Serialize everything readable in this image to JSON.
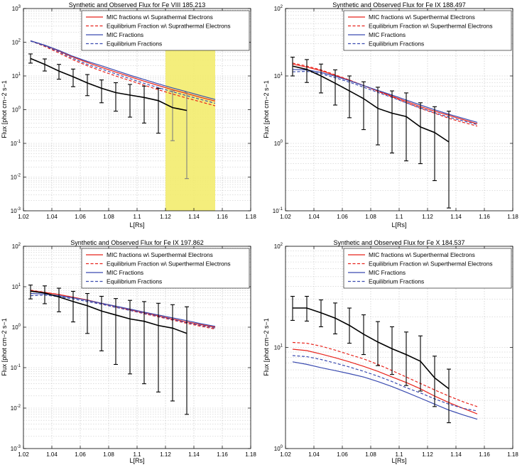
{
  "figure": {
    "colors": {
      "mic_sup": "#e8231b",
      "eq_sup": "#e8231b",
      "mic": "#3a4bb0",
      "eq": "#3a4bb0",
      "observed": "#000000",
      "highlight": "#f3ec6e",
      "grid": "#bfbfbf"
    }
  },
  "chart_data": [
    {
      "type": "line",
      "title": "Synthetic and Observed Flux for Fe VIII 185.213",
      "xlabel": "L[Rs]",
      "ylabel": "Flux [phot cm−2 s−1",
      "xlim": [
        1.02,
        1.18
      ],
      "ylim_exp": [
        -3,
        3
      ],
      "xticks": [
        "1.02",
        "1.04",
        "1.06",
        "1.08",
        "1.1",
        "1.12",
        "1.14",
        "1.16",
        "1.18"
      ],
      "highlight_x": [
        1.12,
        1.155
      ],
      "legend": [
        "MIC fractions w\\ Suprathermal Electrons",
        "Equilibrium Fraction w\\ Suprathermal Electrons",
        "MIC Fractions",
        "Equilibrium Fractions"
      ],
      "series": [
        {
          "name": "MIC fractions w\\ Suprathermal Electrons",
          "style": "solid",
          "color": "#e8231b",
          "x": [
            1.025,
            1.035,
            1.045,
            1.055,
            1.065,
            1.075,
            1.085,
            1.095,
            1.105,
            1.115,
            1.125,
            1.135,
            1.145,
            1.155
          ],
          "y": [
            110,
            80,
            55,
            36,
            25,
            18,
            13,
            9.5,
            7.0,
            5.2,
            3.9,
            3.0,
            2.3,
            1.8
          ]
        },
        {
          "name": "Equilibrium Fraction w\\ Suprathermal Electrons",
          "style": "dashed",
          "color": "#e8231b",
          "x": [
            1.025,
            1.035,
            1.045,
            1.055,
            1.065,
            1.075,
            1.085,
            1.095,
            1.105,
            1.115,
            1.125,
            1.135,
            1.145,
            1.155
          ],
          "y": [
            110,
            75,
            48,
            30,
            20,
            14,
            10,
            7.3,
            5.3,
            3.9,
            2.9,
            2.2,
            1.7,
            1.3
          ]
        },
        {
          "name": "MIC Fractions",
          "style": "solid",
          "color": "#3a4bb0",
          "x": [
            1.025,
            1.035,
            1.045,
            1.055,
            1.065,
            1.075,
            1.085,
            1.095,
            1.105,
            1.115,
            1.125,
            1.135,
            1.145,
            1.155
          ],
          "y": [
            110,
            82,
            57,
            38,
            27,
            20,
            14.5,
            10.5,
            7.8,
            5.8,
            4.4,
            3.4,
            2.6,
            2.0
          ]
        },
        {
          "name": "Equilibrium Fractions",
          "style": "dashed",
          "color": "#3a4bb0",
          "x": [
            1.025,
            1.035,
            1.045,
            1.055,
            1.065,
            1.075,
            1.085,
            1.095,
            1.105,
            1.115,
            1.125,
            1.135,
            1.145,
            1.155
          ],
          "y": [
            108,
            78,
            52,
            33,
            22,
            16,
            11.5,
            8.3,
            6.0,
            4.5,
            3.4,
            2.6,
            2.0,
            1.55
          ]
        }
      ],
      "observed": {
        "x": [
          1.025,
          1.035,
          1.045,
          1.055,
          1.065,
          1.075,
          1.085,
          1.095,
          1.105,
          1.115,
          1.125,
          1.135
        ],
        "y": [
          33,
          22,
          14,
          9.5,
          6.2,
          4.3,
          3.2,
          2.7,
          2.3,
          1.85,
          1.15,
          0.95
        ],
        "lo": [
          24,
          14,
          8,
          4.8,
          2.6,
          1.6,
          0.9,
          0.6,
          0.4,
          0.2,
          0.12,
          0.009
        ],
        "hi": [
          45,
          32,
          22,
          16,
          11,
          7.6,
          6.3,
          5.6,
          5.0,
          4.3,
          3.6,
          3.3
        ]
      }
    },
    {
      "type": "line",
      "title": "Synthetic and Observed Flux for Fe IX 188.497",
      "xlabel": "L[Rs]",
      "ylabel": "Flux [phot cm−2 s−1",
      "xlim": [
        1.02,
        1.18
      ],
      "ylim_exp": [
        -1,
        2
      ],
      "xticks": [
        "1.02",
        "1.04",
        "1.06",
        "1.08",
        "1.1",
        "1.12",
        "1.14",
        "1.16",
        "1.18"
      ],
      "legend": [
        "MIC fractions w\\ Superthermal Electrons",
        "Equilibrium Fraction w\\ Superthermal Electrons",
        "MIC Fractions",
        "Equilibrium Fractions"
      ],
      "series": [
        {
          "name": "MIC fractions w\\ Superthermal Electrons",
          "style": "solid",
          "color": "#e8231b",
          "x": [
            1.025,
            1.035,
            1.045,
            1.055,
            1.065,
            1.075,
            1.085,
            1.095,
            1.105,
            1.115,
            1.125,
            1.135,
            1.145,
            1.155
          ],
          "y": [
            15,
            13.5,
            12,
            10.2,
            8.6,
            7.2,
            6.0,
            5.0,
            4.2,
            3.5,
            3.0,
            2.6,
            2.25,
            1.95
          ]
        },
        {
          "name": "Equilibrium Fraction w\\ Superthermal Electrons",
          "style": "dashed",
          "color": "#e8231b",
          "x": [
            1.025,
            1.035,
            1.045,
            1.055,
            1.065,
            1.075,
            1.085,
            1.095,
            1.105,
            1.115,
            1.125,
            1.135,
            1.145,
            1.155
          ],
          "y": [
            15.5,
            14,
            12.3,
            10.4,
            8.7,
            7.2,
            5.9,
            4.9,
            4.0,
            3.3,
            2.8,
            2.35,
            2.05,
            1.8
          ]
        },
        {
          "name": "MIC Fractions",
          "style": "solid",
          "color": "#3a4bb0",
          "x": [
            1.025,
            1.035,
            1.045,
            1.055,
            1.065,
            1.075,
            1.085,
            1.095,
            1.105,
            1.115,
            1.125,
            1.135,
            1.145,
            1.155
          ],
          "y": [
            12.5,
            12.3,
            11.3,
            9.9,
            8.5,
            7.2,
            6.1,
            5.2,
            4.4,
            3.7,
            3.15,
            2.7,
            2.35,
            2.05
          ]
        },
        {
          "name": "Equilibrium Fractions",
          "style": "dashed",
          "color": "#3a4bb0",
          "x": [
            1.025,
            1.035,
            1.045,
            1.055,
            1.065,
            1.075,
            1.085,
            1.095,
            1.105,
            1.115,
            1.125,
            1.135,
            1.145,
            1.155
          ],
          "y": [
            11.5,
            11.7,
            10.8,
            9.4,
            8.1,
            6.8,
            5.7,
            4.8,
            4.0,
            3.35,
            2.85,
            2.45,
            2.15,
            1.9
          ]
        }
      ],
      "observed": {
        "x": [
          1.025,
          1.035,
          1.045,
          1.055,
          1.065,
          1.075,
          1.085,
          1.095,
          1.105,
          1.115,
          1.125,
          1.135
        ],
        "y": [
          14,
          12.5,
          10,
          7.8,
          6.0,
          4.6,
          3.3,
          2.8,
          2.5,
          1.75,
          1.45,
          1.05
        ],
        "lo": [
          10,
          8,
          5.6,
          3.7,
          2.4,
          1.6,
          0.95,
          0.72,
          0.55,
          0.5,
          0.28,
          0.11
        ],
        "hi": [
          19,
          17.5,
          15,
          12.3,
          10,
          8.2,
          6.8,
          6.0,
          5.6,
          4.0,
          3.5,
          3.0
        ]
      }
    },
    {
      "type": "line",
      "title": "Synthetic and Observed Flux for Fe IX 197.862",
      "xlabel": "L[Rs]",
      "ylabel": "Flux [phot cm−2 s−1",
      "xlim": [
        1.02,
        1.18
      ],
      "ylim_exp": [
        -3,
        2
      ],
      "xticks": [
        "1.02",
        "1.04",
        "1.06",
        "1.08",
        "1.1",
        "1.12",
        "1.14",
        "1.16",
        "1.18"
      ],
      "legend": [
        "MIC fractions w\\ Superthermal Electrons",
        "Equilibrium Fraction w\\ Superthermal Electrons",
        "MIC Fractions",
        "Equilibrium Fractions"
      ],
      "series": [
        {
          "name": "MIC fractions w\\ Superthermal Electrons",
          "style": "solid",
          "color": "#e8231b",
          "x": [
            1.025,
            1.035,
            1.045,
            1.055,
            1.065,
            1.075,
            1.085,
            1.095,
            1.105,
            1.115,
            1.125,
            1.135,
            1.145,
            1.155
          ],
          "y": [
            8.0,
            7.2,
            6.4,
            5.5,
            4.7,
            3.9,
            3.3,
            2.7,
            2.3,
            1.9,
            1.6,
            1.35,
            1.15,
            1.0
          ]
        },
        {
          "name": "Equilibrium Fraction w\\ Superthermal Electrons",
          "style": "dashed",
          "color": "#e8231b",
          "x": [
            1.025,
            1.035,
            1.045,
            1.055,
            1.065,
            1.075,
            1.085,
            1.095,
            1.105,
            1.115,
            1.125,
            1.135,
            1.145,
            1.155
          ],
          "y": [
            8.2,
            7.3,
            6.4,
            5.5,
            4.6,
            3.8,
            3.1,
            2.6,
            2.15,
            1.8,
            1.5,
            1.25,
            1.05,
            0.9
          ]
        },
        {
          "name": "MIC Fractions",
          "style": "solid",
          "color": "#3a4bb0",
          "x": [
            1.025,
            1.035,
            1.045,
            1.055,
            1.065,
            1.075,
            1.085,
            1.095,
            1.105,
            1.115,
            1.125,
            1.135,
            1.145,
            1.155
          ],
          "y": [
            6.8,
            6.6,
            6.0,
            5.3,
            4.6,
            3.9,
            3.3,
            2.8,
            2.35,
            2.0,
            1.7,
            1.45,
            1.22,
            1.05
          ]
        },
        {
          "name": "Equilibrium Fractions",
          "style": "dashed",
          "color": "#3a4bb0",
          "x": [
            1.025,
            1.035,
            1.045,
            1.055,
            1.065,
            1.075,
            1.085,
            1.095,
            1.105,
            1.115,
            1.125,
            1.135,
            1.145,
            1.155
          ],
          "y": [
            6.0,
            6.2,
            5.7,
            5.0,
            4.3,
            3.7,
            3.1,
            2.6,
            2.2,
            1.85,
            1.55,
            1.3,
            1.1,
            0.95
          ]
        }
      ],
      "observed": {
        "x": [
          1.025,
          1.035,
          1.045,
          1.055,
          1.065,
          1.075,
          1.085,
          1.095,
          1.105,
          1.115,
          1.125,
          1.135
        ],
        "y": [
          7.8,
          7.0,
          5.6,
          4.3,
          3.4,
          2.5,
          2.0,
          1.6,
          1.4,
          1.1,
          0.95,
          0.7
        ],
        "lo": [
          5.0,
          3.8,
          2.4,
          1.35,
          0.7,
          0.26,
          0.12,
          0.07,
          0.04,
          0.025,
          0.015,
          0.007
        ],
        "hi": [
          11,
          10.5,
          9.2,
          7.7,
          6.8,
          5.8,
          5.1,
          4.6,
          4.3,
          3.9,
          3.6,
          3.2
        ]
      }
    },
    {
      "type": "line",
      "title": "Synthetic and Observed Flux for Fe X 184.537",
      "xlabel": "L[Rs]",
      "ylabel": "Flux [phot cm−2 s−1",
      "xlim": [
        1.02,
        1.18
      ],
      "ylim_exp": [
        0,
        2
      ],
      "xticks": [
        "1.02",
        "1.04",
        "1.06",
        "1.08",
        "1.1",
        "1.12",
        "1.14",
        "1.16",
        "1.18"
      ],
      "legend": [
        "MIC fractions w\\ Superthermal Electrons",
        "Equilibrium Fraction w\\ Superthermal Electrons",
        "MIC Fractions",
        "Equilibrium Fractions"
      ],
      "series": [
        {
          "name": "MIC fractions w\\ Superthermal Electrons",
          "style": "solid",
          "color": "#e8231b",
          "x": [
            1.025,
            1.035,
            1.045,
            1.055,
            1.065,
            1.075,
            1.085,
            1.095,
            1.105,
            1.115,
            1.125,
            1.135,
            1.145,
            1.155
          ],
          "y": [
            9.6,
            9.3,
            8.6,
            7.9,
            7.2,
            6.5,
            5.8,
            5.1,
            4.5,
            3.9,
            3.3,
            2.85,
            2.5,
            2.2
          ]
        },
        {
          "name": "Equilibrium Fraction w\\ Superthermal Electrons",
          "style": "dashed",
          "color": "#e8231b",
          "x": [
            1.025,
            1.035,
            1.045,
            1.055,
            1.065,
            1.075,
            1.085,
            1.095,
            1.105,
            1.115,
            1.125,
            1.135,
            1.145,
            1.155
          ],
          "y": [
            11.2,
            11.0,
            10.3,
            9.4,
            8.5,
            7.7,
            6.8,
            5.9,
            5.1,
            4.4,
            3.8,
            3.3,
            2.9,
            2.6
          ]
        },
        {
          "name": "MIC Fractions",
          "style": "solid",
          "color": "#3a4bb0",
          "x": [
            1.025,
            1.035,
            1.045,
            1.055,
            1.065,
            1.075,
            1.085,
            1.095,
            1.105,
            1.115,
            1.125,
            1.135,
            1.145,
            1.155
          ],
          "y": [
            7.2,
            6.8,
            6.3,
            5.9,
            5.5,
            5.1,
            4.6,
            4.1,
            3.6,
            3.15,
            2.75,
            2.4,
            2.15,
            1.95
          ]
        },
        {
          "name": "Equilibrium Fractions",
          "style": "dashed",
          "color": "#3a4bb0",
          "x": [
            1.025,
            1.035,
            1.045,
            1.055,
            1.065,
            1.075,
            1.085,
            1.095,
            1.105,
            1.115,
            1.125,
            1.135,
            1.145,
            1.155
          ],
          "y": [
            8.3,
            8.1,
            7.6,
            7.0,
            6.4,
            5.8,
            5.2,
            4.6,
            4.0,
            3.55,
            3.1,
            2.75,
            2.5,
            2.35
          ]
        }
      ],
      "observed": {
        "x": [
          1.025,
          1.035,
          1.045,
          1.055,
          1.065,
          1.075,
          1.085,
          1.095,
          1.105,
          1.115,
          1.125,
          1.135
        ],
        "y": [
          24.5,
          24.5,
          22,
          19.5,
          16.5,
          13.5,
          11.3,
          9.7,
          8.5,
          7.3,
          5.0,
          3.9
        ],
        "lo": [
          18.5,
          18.2,
          16,
          13.6,
          11,
          8.5,
          6.6,
          5.4,
          4.2,
          3.7,
          2.6,
          1.8
        ],
        "hi": [
          32,
          32,
          29.5,
          27.5,
          24.5,
          21,
          18,
          16,
          14.2,
          13,
          8.2,
          6.1
        ]
      }
    }
  ]
}
